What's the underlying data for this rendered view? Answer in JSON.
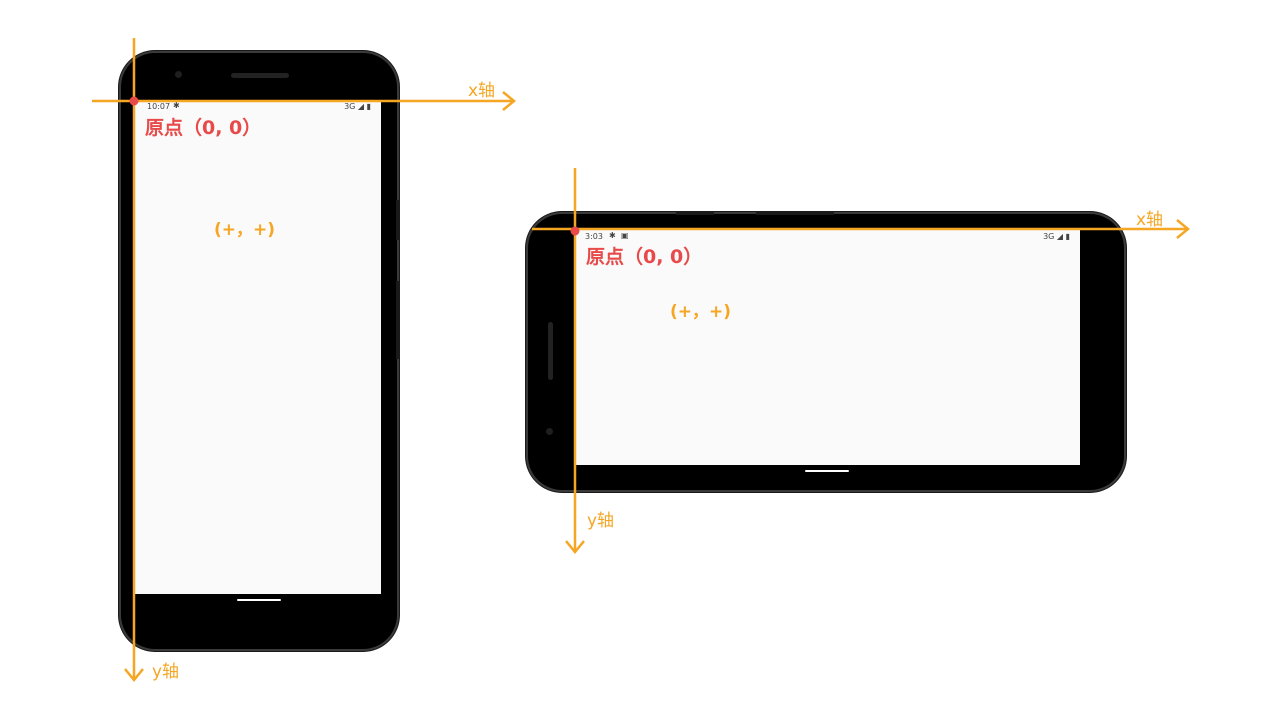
{
  "colors": {
    "axis": "#f5a623",
    "origin": "#e84a4a"
  },
  "portrait": {
    "status_time": "10:07",
    "status_right": "3G ◢ ▮",
    "x_axis_label": "x轴",
    "y_axis_label": "y轴",
    "origin_label": "原点（0, 0）",
    "quadrant_label": "(+，+)"
  },
  "landscape": {
    "status_time": "3:03",
    "status_right": "3G ◢ ▮",
    "x_axis_label": "x轴",
    "y_axis_label": "y轴",
    "origin_label": "原点（0, 0）",
    "quadrant_label": "(+，+)"
  }
}
